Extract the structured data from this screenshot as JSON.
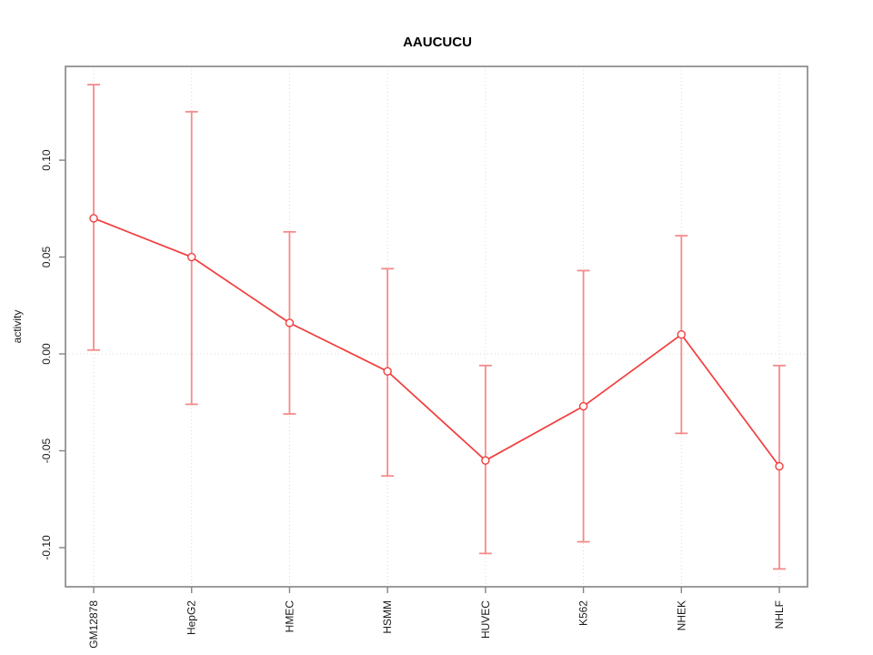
{
  "chart_data": {
    "type": "line",
    "title": "AAUCUCU",
    "xlabel": "",
    "ylabel": "activity",
    "categories": [
      "GM12878",
      "HepG2",
      "HMEC",
      "HSMM",
      "HUVEC",
      "K562",
      "NHEK",
      "NHLF"
    ],
    "series": [
      {
        "name": "activity",
        "values": [
          0.07,
          0.05,
          0.016,
          -0.009,
          -0.055,
          -0.027,
          0.01,
          -0.058
        ],
        "lower": [
          0.002,
          -0.026,
          -0.031,
          -0.063,
          -0.103,
          -0.097,
          -0.041,
          -0.111
        ],
        "upper": [
          0.139,
          0.125,
          0.063,
          0.044,
          -0.006,
          0.043,
          0.061,
          -0.006
        ]
      }
    ],
    "ytick_values": [
      -0.1,
      -0.05,
      0.0,
      0.05,
      0.1
    ],
    "ytick_labels": [
      "-0.10",
      "-0.05",
      "0.00",
      "0.05",
      "0.10"
    ],
    "ylim": [
      -0.1202,
      0.1484
    ],
    "grid": "dotted vertical line at each category; dotted horizontal line at y=0",
    "legend_position": "none",
    "marker": "open-circle",
    "colors": {
      "line": "#f23e3e",
      "errorbar": "#f58b8b",
      "grid": "#d9d9d9",
      "box": "#848484",
      "tick": "#848484",
      "text": "#1a1a1a",
      "background": "#ffffff"
    }
  }
}
